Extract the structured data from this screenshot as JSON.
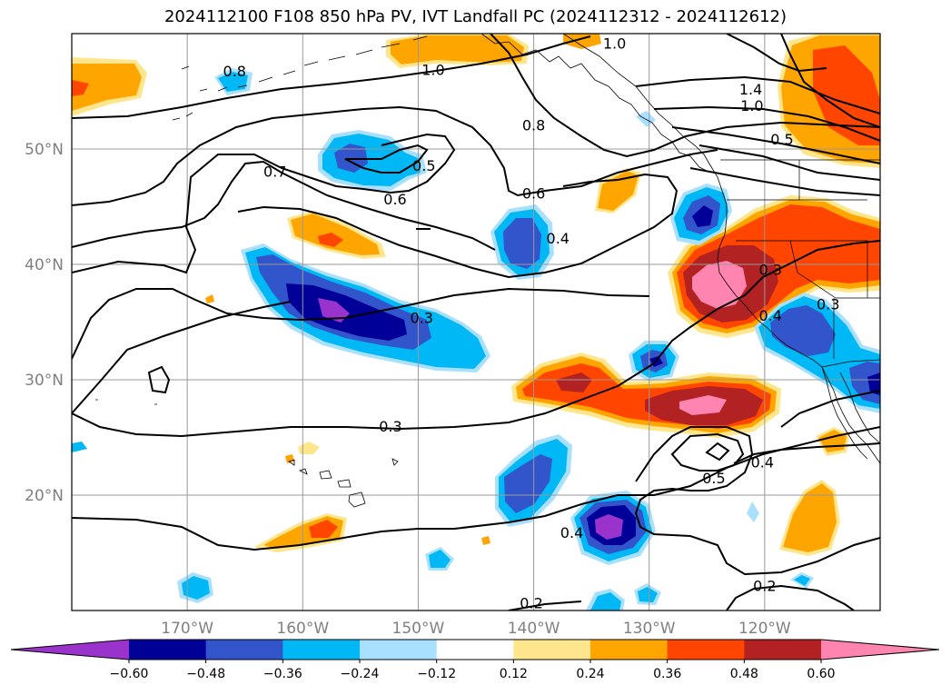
{
  "title": "2024112100 F108 850 hPa PV, IVT Landfall PC (2024112312 - 2024112612)",
  "lat_ticks": [
    {
      "label": "50°N",
      "lat": 50
    },
    {
      "label": "40°N",
      "lat": 40
    },
    {
      "label": "30°N",
      "lat": 30
    },
    {
      "label": "20°N",
      "lat": 20
    }
  ],
  "lon_ticks": [
    {
      "label": "170°W",
      "lon": -170
    },
    {
      "label": "160°W",
      "lon": -160
    },
    {
      "label": "150°W",
      "lon": -150
    },
    {
      "label": "140°W",
      "lon": -140
    },
    {
      "label": "130°W",
      "lon": -130
    },
    {
      "label": "120°W",
      "lon": -120
    }
  ],
  "extent": {
    "lon_min": -180,
    "lon_max": -110,
    "lat_min": 10,
    "lat_max": 60
  },
  "colorbar": {
    "ticks": [
      "−0.60",
      "−0.48",
      "−0.36",
      "−0.24",
      "−0.12",
      "0.12",
      "0.24",
      "0.36",
      "0.48",
      "0.60"
    ],
    "colors": [
      "#9933cc",
      "#000099",
      "#3355cc",
      "#00b8f5",
      "#aae0ff",
      "#ffffff",
      "#ffe68c",
      "#ffa500",
      "#ff4500",
      "#b22222",
      "#ff85b0"
    ]
  },
  "contour_labels": [
    {
      "text": "1.0",
      "lon": -148.7,
      "lat": 56.8
    },
    {
      "text": "1.0",
      "lon": -133.0,
      "lat": 59.1
    },
    {
      "text": "1.4",
      "lon": -121.2,
      "lat": 55.1
    },
    {
      "text": "1.0",
      "lon": -121.1,
      "lat": 53.7
    },
    {
      "text": "0.8",
      "lon": -165.9,
      "lat": 56.7
    },
    {
      "text": "0.8",
      "lon": -140.0,
      "lat": 52.0
    },
    {
      "text": "0.5",
      "lon": -118.5,
      "lat": 50.8
    },
    {
      "text": "0.7",
      "lon": -162.4,
      "lat": 48.0
    },
    {
      "text": "0.5",
      "lon": -149.5,
      "lat": 48.5
    },
    {
      "text": "0.6",
      "lon": -152.0,
      "lat": 45.6
    },
    {
      "text": "0.6",
      "lon": -140.0,
      "lat": 46.1
    },
    {
      "text": "0.4",
      "lon": -137.9,
      "lat": 42.2
    },
    {
      "text": "0.3",
      "lon": -119.5,
      "lat": 39.5
    },
    {
      "text": "0.4",
      "lon": -119.5,
      "lat": 35.5
    },
    {
      "text": "0.3",
      "lon": -114.5,
      "lat": 36.5
    },
    {
      "text": "0.3",
      "lon": -149.7,
      "lat": 35.3
    },
    {
      "text": "0.3",
      "lon": -152.4,
      "lat": 25.9
    },
    {
      "text": "0.5",
      "lon": -124.4,
      "lat": 21.4
    },
    {
      "text": "0.4",
      "lon": -120.2,
      "lat": 22.8
    },
    {
      "text": "0.4",
      "lon": -136.7,
      "lat": 16.7
    },
    {
      "text": "0.2",
      "lon": -140.2,
      "lat": 10.6
    },
    {
      "text": "0.2",
      "lon": -120.0,
      "lat": 12.1
    }
  ]
}
